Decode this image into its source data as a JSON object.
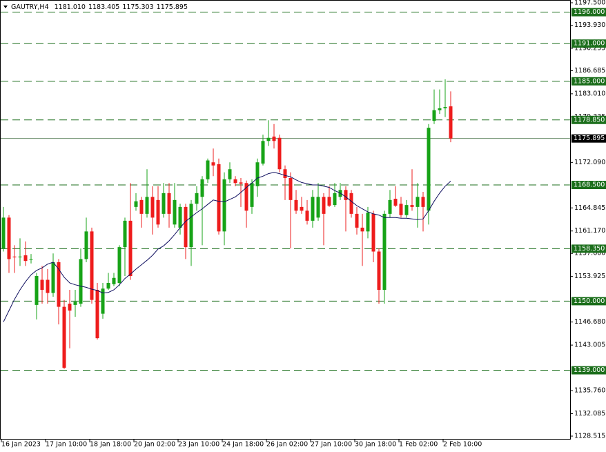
{
  "chart_data": {
    "type": "candlestick",
    "title": "GAUTRY,H4",
    "header_values": [
      {
        "value": 1181.01,
        "label": "1181.010"
      },
      {
        "value": 1183.405,
        "label": "1183.405"
      },
      {
        "value": 1175.303,
        "label": "1175.303"
      },
      {
        "value": 1175.895,
        "label": "1175.895"
      }
    ],
    "categories": [
      "16 Jan 2023",
      null,
      null,
      null,
      null,
      null,
      null,
      null,
      "17 Jan 10:00",
      null,
      null,
      null,
      null,
      null,
      null,
      null,
      "18 Jan 18:00",
      null,
      null,
      null,
      null,
      null,
      null,
      null,
      "20 Jan 02:00",
      null,
      null,
      null,
      null,
      null,
      null,
      null,
      "23 Jan 10:00",
      null,
      null,
      null,
      null,
      null,
      null,
      null,
      "24 Jan 18:00",
      null,
      null,
      null,
      null,
      null,
      null,
      null,
      "26 Jan 02:00",
      null,
      null,
      null,
      null,
      null,
      null,
      null,
      "27 Jan 10:00",
      null,
      null,
      null,
      null,
      null,
      null,
      null,
      "30 Jan 18:00",
      null,
      null,
      null,
      null,
      null,
      null,
      null,
      "1 Feb 02:00",
      null,
      null,
      null,
      null,
      null,
      null,
      null,
      "2 Feb 10:00",
      null
    ],
    "open": [
      1158.4,
      1163.3,
      1157.1,
      1157.0,
      1157.3,
      1156.6,
      1149.4,
      1153.4,
      1153.4,
      1151.3,
      1156.2,
      1149.1,
      1149.6,
      1149.4,
      1149.6,
      1156.7,
      1161.1,
      1151.8,
      1148.0,
      1152.0,
      1152.7,
      1152.9,
      1158.6,
      1162.8,
      1165.0,
      1166.1,
      1163.9,
      1166.6,
      1166.1,
      1163.9,
      1167.2,
      1162.2,
      1161.7,
      1165.0,
      1158.6,
      1165.5,
      1166.6,
      1169.4,
      1172.1,
      1171.8,
      1161.1,
      1169.4,
      1169.4,
      1168.9,
      1168.8,
      1165.0,
      1168.3,
      1171.9,
      1175.5,
      1176.2,
      1176.0,
      1171.0,
      1169.6,
      1166.1,
      1165.0,
      1164.4,
      1162.8,
      1163.3,
      1166.6,
      1166.6,
      1165.3,
      1166.6,
      1167.7,
      1167.2,
      1163.9,
      1161.7,
      1161.1,
      1163.9,
      1157.9,
      1151.8,
      1163.9,
      1166.3,
      1165.5,
      1163.7,
      1165.3,
      1165.0,
      1166.6,
      1164.4,
      1178.7,
      1180.4,
      1180.7,
      1181.01
    ],
    "high": [
      1165.0,
      1163.7,
      1158.9,
      1160.0,
      1159.5,
      1157.5,
      1154.5,
      1155.6,
      1155.1,
      1157.6,
      1156.7,
      1150.2,
      1151.8,
      1151.8,
      1158.4,
      1163.3,
      1161.7,
      1152.9,
      1152.9,
      1154.5,
      1154.5,
      1158.9,
      1163.3,
      1168.8,
      1167.2,
      1166.6,
      1171.0,
      1168.3,
      1168.3,
      1168.8,
      1168.8,
      1168.8,
      1165.5,
      1165.5,
      1166.1,
      1168.3,
      1169.9,
      1172.7,
      1174.3,
      1172.7,
      1170.5,
      1172.1,
      1169.9,
      1169.6,
      1169.2,
      1169.4,
      1172.7,
      1176.5,
      1178.8,
      1178.2,
      1176.5,
      1171.6,
      1170.5,
      1167.7,
      1166.6,
      1166.1,
      1167.7,
      1168.8,
      1167.2,
      1168.3,
      1168.8,
      1168.8,
      1168.3,
      1167.7,
      1165.0,
      1163.9,
      1165.0,
      1164.4,
      1158.4,
      1164.4,
      1167.7,
      1168.3,
      1166.6,
      1166.1,
      1171.0,
      1168.8,
      1167.4,
      1178.2,
      1183.7,
      1183.7,
      1185.3,
      1183.405
    ],
    "low": [
      1157.9,
      1154.5,
      1154.5,
      1155.6,
      1155.6,
      1156.0,
      1147.1,
      1149.6,
      1149.6,
      1150.7,
      1146.3,
      1139.2,
      1142.5,
      1147.5,
      1149.1,
      1156.2,
      1149.6,
      1143.9,
      1147.2,
      1151.8,
      1152.4,
      1152.4,
      1154.0,
      1153.4,
      1164.4,
      1161.7,
      1163.3,
      1160.6,
      1161.7,
      1163.3,
      1161.7,
      1161.7,
      1160.6,
      1156.7,
      1155.6,
      1164.4,
      1158.9,
      1168.8,
      1169.9,
      1160.6,
      1158.9,
      1168.8,
      1168.3,
      1165.0,
      1161.7,
      1163.9,
      1166.6,
      1171.6,
      1174.7,
      1174.3,
      1170.5,
      1166.1,
      1158.4,
      1163.9,
      1163.9,
      1162.2,
      1161.7,
      1162.8,
      1158.9,
      1165.0,
      1165.0,
      1166.1,
      1161.1,
      1163.3,
      1160.6,
      1155.6,
      1160.0,
      1156.2,
      1149.6,
      1149.6,
      1163.3,
      1165.0,
      1163.3,
      1163.3,
      1164.4,
      1161.7,
      1161.1,
      1162.2,
      1178.2,
      1179.8,
      1179.3,
      1175.303
    ],
    "close": [
      1163.3,
      1156.7,
      1157.0,
      1157.1,
      1156.4,
      1156.7,
      1154.0,
      1151.8,
      1151.3,
      1156.2,
      1149.1,
      1139.4,
      1148.5,
      1149.9,
      1156.7,
      1161.1,
      1150.2,
      1144.1,
      1152.0,
      1152.9,
      1153.7,
      1158.6,
      1162.8,
      1154.0,
      1165.9,
      1163.9,
      1166.6,
      1163.3,
      1162.2,
      1167.2,
      1163.9,
      1166.1,
      1165.0,
      1158.6,
      1165.5,
      1167.2,
      1169.4,
      1172.4,
      1171.6,
      1161.1,
      1169.4,
      1171.0,
      1168.8,
      1168.7,
      1164.4,
      1168.8,
      1172.1,
      1175.5,
      1176.0,
      1175.5,
      1171.0,
      1169.6,
      1166.1,
      1164.4,
      1164.4,
      1162.8,
      1166.6,
      1166.6,
      1163.9,
      1165.2,
      1167.2,
      1167.7,
      1166.1,
      1163.9,
      1161.7,
      1161.1,
      1164.1,
      1157.9,
      1151.8,
      1163.9,
      1166.1,
      1165.2,
      1163.7,
      1165.3,
      1165.0,
      1166.6,
      1165.0,
      1177.6,
      1180.4,
      1180.7,
      1180.9,
      1175.895
    ],
    "ma": [
      1146.7,
      1148.5,
      1150.3,
      1151.8,
      1153.1,
      1154.2,
      1154.9,
      1155.3,
      1155.9,
      1156.2,
      1155.1,
      1153.8,
      1152.9,
      1152.6,
      1152.4,
      1152.2,
      1151.9,
      1151.7,
      1151.3,
      1151.4,
      1151.8,
      1152.6,
      1153.6,
      1154.3,
      1155.1,
      1155.8,
      1156.5,
      1157.3,
      1158.3,
      1158.8,
      1159.6,
      1160.6,
      1161.7,
      1162.7,
      1163.4,
      1164.1,
      1164.7,
      1165.4,
      1166.1,
      1165.9,
      1165.8,
      1166.2,
      1166.6,
      1167.3,
      1168.1,
      1168.8,
      1169.6,
      1169.9,
      1170.3,
      1170.5,
      1170.3,
      1170.0,
      1169.8,
      1169.3,
      1168.9,
      1168.7,
      1168.5,
      1168.5,
      1168.3,
      1168.1,
      1167.6,
      1167.2,
      1166.6,
      1165.9,
      1165.2,
      1164.7,
      1164.2,
      1163.9,
      1163.7,
      1163.3,
      1163.3,
      1163.3,
      1163.2,
      1163.2,
      1163.1,
      1163.0,
      1163.1,
      1164.4,
      1165.9,
      1167.2,
      1168.3,
      1169.1
    ],
    "up_color": "#17a317",
    "down_color": "#ee1c1c",
    "ma_color": "#101060",
    "ylim": [
      1128.515,
      1197.5
    ],
    "yticks": [
      {
        "value": 1197.5,
        "label": "1197.500"
      },
      {
        "value": 1193.93,
        "label": "1193.930"
      },
      {
        "value": 1190.255,
        "label": "1190.255"
      },
      {
        "value": 1186.685,
        "label": "1186.685"
      },
      {
        "value": 1183.01,
        "label": "1183.010"
      },
      {
        "value": 1179.335,
        "label": "1179.335"
      },
      {
        "value": 1172.09,
        "label": "1172.090"
      },
      {
        "value": 1164.845,
        "label": "1164.845"
      },
      {
        "value": 1161.17,
        "label": "1161.170"
      },
      {
        "value": 1157.6,
        "label": "1157.600"
      },
      {
        "value": 1153.925,
        "label": "1153.925"
      },
      {
        "value": 1146.68,
        "label": "1146.680"
      },
      {
        "value": 1143.005,
        "label": "1143.005"
      },
      {
        "value": 1135.76,
        "label": "1135.760"
      },
      {
        "value": 1132.085,
        "label": "1132.085"
      },
      {
        "value": 1128.515,
        "label": "1128.515"
      }
    ],
    "levels": [
      {
        "value": 1196,
        "label": "1196.000"
      },
      {
        "value": 1191,
        "label": "1191.000"
      },
      {
        "value": 1185,
        "label": "1185.000"
      },
      {
        "value": 1178.85,
        "label": "1178.850"
      },
      {
        "value": 1168.5,
        "label": "1168.500"
      },
      {
        "value": 1158.35,
        "label": "1158.350"
      },
      {
        "value": 1150,
        "label": "1150.000"
      },
      {
        "value": 1139,
        "label": "1139.000"
      }
    ],
    "level_color": "#1b6e1b",
    "current_price": {
      "value": 1175.895,
      "label": "1175.895"
    },
    "current_color": "#000000"
  }
}
